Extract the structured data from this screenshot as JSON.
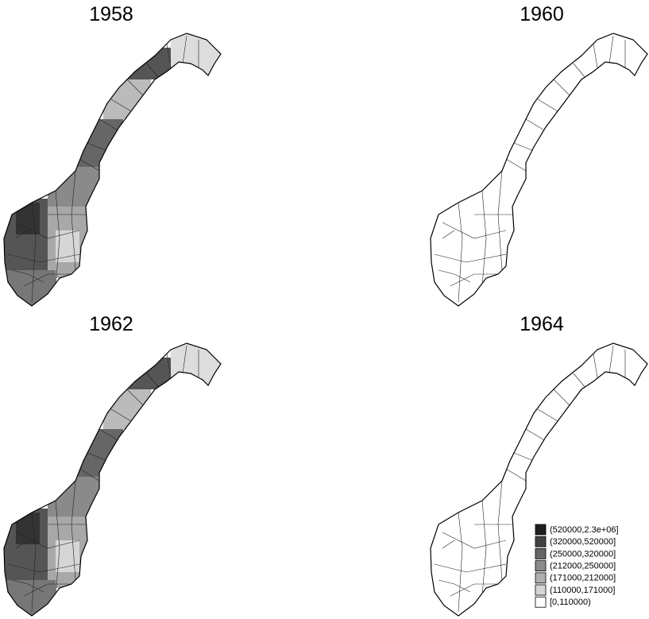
{
  "panels": [
    {
      "title": "1958"
    },
    {
      "title": "1960"
    },
    {
      "title": "1962"
    },
    {
      "title": "1964"
    }
  ],
  "legend": {
    "items": [
      {
        "label": "(520000,2.3e+06]",
        "color": "#1e1e1e"
      },
      {
        "label": "(320000,520000]",
        "color": "#424242"
      },
      {
        "label": "(250000,320000]",
        "color": "#666666"
      },
      {
        "label": "(212000,250000]",
        "color": "#8a8a8a"
      },
      {
        "label": "(171000,212000]",
        "color": "#b0b0b0"
      },
      {
        "label": "(110000,171000]",
        "color": "#d6d6d6"
      },
      {
        "label": "[0,110000)",
        "color": "#ffffff"
      }
    ]
  }
}
